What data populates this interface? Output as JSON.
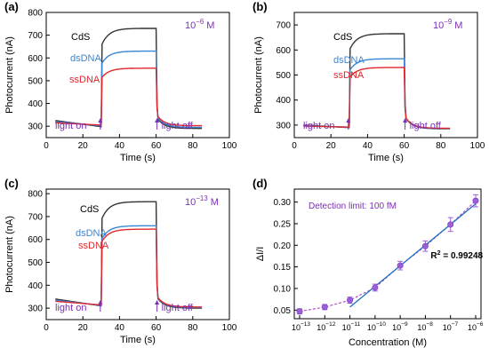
{
  "chart_data": [
    {
      "type": "line",
      "panel_label": "(a)",
      "ylabel": "Photocurrent (nA)",
      "xlabel": "Time (s)",
      "xlim": [
        0,
        100
      ],
      "ylim": [
        250,
        800
      ],
      "x_ticks": [
        0,
        20,
        40,
        60,
        80,
        100
      ],
      "y_ticks": [
        300,
        400,
        500,
        600,
        700,
        800
      ],
      "concentration_base": "10",
      "concentration_exp": "−6",
      "concentration_unit": " M",
      "annotations": {
        "light_on": "light on",
        "light_off": "light off"
      },
      "on_time": 30,
      "off_time": 60,
      "series": [
        {
          "name": "CdS",
          "color": "#333333",
          "dark_start": 325,
          "dark_end": 298,
          "plateau": 730,
          "tail_end": 290
        },
        {
          "name": "dsDNA",
          "color": "#3a86d4",
          "dark_start": 320,
          "dark_end": 302,
          "plateau": 630,
          "tail_end": 295
        },
        {
          "name": "ssDNA",
          "color": "#e0282e",
          "dark_start": 315,
          "dark_end": 305,
          "plateau": 555,
          "tail_end": 302
        }
      ]
    },
    {
      "type": "line",
      "panel_label": "(b)",
      "ylabel": "Photocurrent (nA)",
      "xlabel": "Time (s)",
      "xlim": [
        0,
        100
      ],
      "ylim": [
        250,
        750
      ],
      "x_ticks": [
        0,
        20,
        40,
        60,
        80,
        100
      ],
      "y_ticks": [
        300,
        400,
        500,
        600,
        700
      ],
      "concentration_base": "10",
      "concentration_exp": "−9",
      "concentration_unit": " M",
      "annotations": {
        "light_on": "light on",
        "light_off": "light off"
      },
      "on_time": 30,
      "off_time": 60,
      "series": [
        {
          "name": "CdS",
          "color": "#333333",
          "dark_start": 300,
          "dark_end": 290,
          "plateau": 665,
          "tail_end": 285
        },
        {
          "name": "dsDNA",
          "color": "#3a86d4",
          "dark_start": 298,
          "dark_end": 291,
          "plateau": 565,
          "tail_end": 286
        },
        {
          "name": "ssDNA",
          "color": "#e0282e",
          "dark_start": 296,
          "dark_end": 292,
          "plateau": 530,
          "tail_end": 287
        }
      ]
    },
    {
      "type": "line",
      "panel_label": "(c)",
      "ylabel": "Photocurrent (nA)",
      "xlabel": "Time (s)",
      "xlim": [
        0,
        100
      ],
      "ylim": [
        250,
        820
      ],
      "x_ticks": [
        0,
        20,
        40,
        60,
        80,
        100
      ],
      "y_ticks": [
        300,
        400,
        500,
        600,
        700,
        800
      ],
      "concentration_base": "10",
      "concentration_exp": "−13",
      "concentration_unit": " M",
      "annotations": {
        "light_on": "light on",
        "light_off": "light off"
      },
      "on_time": 30,
      "off_time": 60,
      "series": [
        {
          "name": "CdS",
          "color": "#333333",
          "dark_start": 340,
          "dark_end": 310,
          "plateau": 765,
          "tail_end": 300
        },
        {
          "name": "dsDNA",
          "color": "#3a86d4",
          "dark_start": 335,
          "dark_end": 312,
          "plateau": 660,
          "tail_end": 303
        },
        {
          "name": "ssDNA",
          "color": "#e0282e",
          "dark_start": 330,
          "dark_end": 314,
          "plateau": 645,
          "tail_end": 305
        }
      ]
    },
    {
      "type": "scatter",
      "panel_label": "(d)",
      "ylabel": "ΔI/I",
      "xlabel": "Concentration (M)",
      "ylim": [
        0.03,
        0.33
      ],
      "x_exp_range": [
        -13,
        -6
      ],
      "y_ticks": [
        0.05,
        0.1,
        0.15,
        0.2,
        0.25,
        0.3
      ],
      "x_tick_base": "10",
      "x_tick_exps": [
        "−13",
        "−12",
        "−11",
        "−10",
        "−9",
        "−8",
        "−7",
        "−6"
      ],
      "detection_limit": "Detection limit: 100 fM",
      "r2_label": "R",
      "r2_sup": "2",
      "r2_value": " = 0.99248",
      "points": [
        {
          "log_x": -13,
          "y": 0.047,
          "err": 0.006
        },
        {
          "log_x": -12,
          "y": 0.057,
          "err": 0.006
        },
        {
          "log_x": -11,
          "y": 0.073,
          "err": 0.007
        },
        {
          "log_x": -10,
          "y": 0.102,
          "err": 0.008
        },
        {
          "log_x": -9,
          "y": 0.153,
          "err": 0.01
        },
        {
          "log_x": -8,
          "y": 0.198,
          "err": 0.012
        },
        {
          "log_x": -7,
          "y": 0.248,
          "err": 0.016
        },
        {
          "log_x": -6,
          "y": 0.303,
          "err": 0.014
        }
      ],
      "fit_line": {
        "from_log_x": -11,
        "to_log_x": -6,
        "y_from": 0.057,
        "y_to": 0.296
      },
      "colors": {
        "points": "#9b5fd9",
        "fit": "#1f6fc2",
        "dashed": "#b040c0",
        "text_purple": "#7a2fb5",
        "arrow": "#8a2bc2"
      }
    }
  ]
}
